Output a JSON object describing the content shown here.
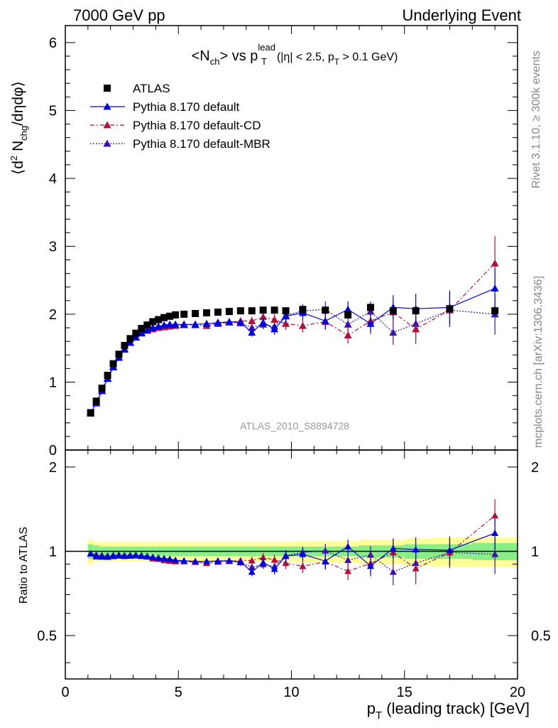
{
  "header": {
    "left": "7000 GeV pp",
    "right": "Underlying Event"
  },
  "side_labels": {
    "rivet": "Rivet 3.1.10, ≥ 300k events",
    "mcplots": "mcplots.cern.ch [arXiv:1306.3436]"
  },
  "watermark": "ATLAS_2010_S8894728",
  "title": {
    "main": "<N",
    "main_sub": "ch",
    "vs": "> vs p",
    "vs_sup": "lead",
    "vs_sub": "T",
    "cut1": "(|η| < 2.5, p",
    "cut_sub": "T",
    "cut2": " > 0.1 GeV)"
  },
  "legend": [
    {
      "label": "ATLAS",
      "color": "#000000",
      "marker": "square",
      "line": "none"
    },
    {
      "label": "Pythia 8.170 default",
      "color": "#0000dd",
      "marker": "triangle",
      "line": "solid"
    },
    {
      "label": "Pythia 8.170 default-CD",
      "color": "#b0103e",
      "marker": "triangle",
      "line": "dashdot"
    },
    {
      "label": "Pythia 8.170 default-MBR",
      "color": "#3a10b0",
      "marker": "triangle",
      "line": "dotted"
    }
  ],
  "ylabel_main": {
    "a": "⟨d",
    "a_sup": "2",
    "b": " N",
    "b_sub": "chg",
    "c": "/dηdφ⟩"
  },
  "ylabel_ratio": "Ratio to ATLAS",
  "xlabel": {
    "a": "p",
    "a_sub": "T",
    "b": " (leading track) [GeV]"
  },
  "chart_data": {
    "type": "scatter",
    "x": [
      1.12,
      1.37,
      1.62,
      1.87,
      2.12,
      2.37,
      2.62,
      2.87,
      3.12,
      3.37,
      3.62,
      3.87,
      4.12,
      4.37,
      4.62,
      4.87,
      5.25,
      5.75,
      6.25,
      6.75,
      7.25,
      7.75,
      8.25,
      8.75,
      9.25,
      9.75,
      10.5,
      11.5,
      12.5,
      13.5,
      14.5,
      15.5,
      17.0,
      19.0
    ],
    "xlim": [
      0,
      20
    ],
    "xticks": [
      "0",
      "5",
      "10",
      "15",
      "20"
    ],
    "main": {
      "ylim": [
        0,
        6.25
      ],
      "yticks": [
        "0",
        "1",
        "2",
        "3",
        "4",
        "5",
        "6"
      ]
    },
    "ratio": {
      "ylim": [
        0.35,
        2.3
      ],
      "scale": "log",
      "yticks": [
        "0.5",
        "1",
        "2"
      ],
      "band_inner": [
        0.06,
        0.05,
        0.04,
        0.04,
        0.04,
        0.04,
        0.04,
        0.04,
        0.04,
        0.04,
        0.04,
        0.04,
        0.04,
        0.04,
        0.04,
        0.04,
        0.04,
        0.04,
        0.04,
        0.04,
        0.04,
        0.04,
        0.04,
        0.04,
        0.04,
        0.04,
        0.04,
        0.04,
        0.04,
        0.05,
        0.05,
        0.06,
        0.06,
        0.07
      ],
      "band_outer": [
        0.1,
        0.08,
        0.08,
        0.08,
        0.08,
        0.08,
        0.08,
        0.08,
        0.08,
        0.08,
        0.08,
        0.08,
        0.08,
        0.08,
        0.08,
        0.08,
        0.08,
        0.08,
        0.08,
        0.08,
        0.08,
        0.08,
        0.08,
        0.08,
        0.08,
        0.08,
        0.09,
        0.09,
        0.09,
        0.1,
        0.1,
        0.11,
        0.12,
        0.12
      ]
    },
    "series": [
      {
        "name": "ATLAS",
        "values": [
          0.55,
          0.72,
          0.91,
          1.1,
          1.27,
          1.41,
          1.54,
          1.64,
          1.72,
          1.79,
          1.84,
          1.89,
          1.92,
          1.95,
          1.97,
          1.99,
          2.0,
          2.01,
          2.02,
          2.03,
          2.04,
          2.05,
          2.05,
          2.06,
          2.06,
          2.05,
          2.07,
          2.06,
          1.99,
          2.1,
          2.05,
          2.05,
          2.08,
          2.05
        ],
        "errors": [
          0.01,
          0.01,
          0.01,
          0.01,
          0.01,
          0.01,
          0.01,
          0.01,
          0.01,
          0.01,
          0.01,
          0.01,
          0.01,
          0.01,
          0.01,
          0.01,
          0.01,
          0.01,
          0.01,
          0.01,
          0.01,
          0.01,
          0.01,
          0.01,
          0.01,
          0.01,
          0.02,
          0.02,
          0.03,
          0.03,
          0.04,
          0.05,
          0.06,
          0.07
        ]
      },
      {
        "name": "Pythia 8.170 default",
        "values": [
          0.54,
          0.69,
          0.87,
          1.05,
          1.22,
          1.36,
          1.48,
          1.58,
          1.66,
          1.72,
          1.76,
          1.8,
          1.82,
          1.84,
          1.85,
          1.85,
          1.85,
          1.85,
          1.86,
          1.87,
          1.89,
          1.88,
          1.73,
          1.88,
          1.78,
          1.97,
          2.02,
          1.9,
          2.07,
          1.86,
          2.1,
          2.08,
          2.1,
          2.38
        ],
        "errors": [
          0.01,
          0.01,
          0.01,
          0.01,
          0.01,
          0.01,
          0.01,
          0.01,
          0.01,
          0.02,
          0.02,
          0.02,
          0.02,
          0.02,
          0.02,
          0.02,
          0.02,
          0.03,
          0.03,
          0.04,
          0.04,
          0.05,
          0.06,
          0.07,
          0.08,
          0.09,
          0.1,
          0.12,
          0.12,
          0.15,
          0.18,
          0.22,
          0.25,
          0.3
        ]
      },
      {
        "name": "Pythia 8.170 default-CD",
        "values": [
          0.54,
          0.69,
          0.87,
          1.05,
          1.22,
          1.36,
          1.48,
          1.58,
          1.66,
          1.72,
          1.76,
          1.78,
          1.8,
          1.81,
          1.82,
          1.83,
          1.84,
          1.84,
          1.83,
          1.86,
          1.88,
          1.9,
          1.9,
          1.96,
          1.92,
          1.86,
          1.83,
          1.89,
          1.69,
          1.9,
          2.03,
          1.78,
          2.06,
          2.75
        ],
        "errors": [
          0.01,
          0.01,
          0.01,
          0.01,
          0.01,
          0.01,
          0.01,
          0.01,
          0.01,
          0.02,
          0.02,
          0.02,
          0.02,
          0.02,
          0.02,
          0.02,
          0.02,
          0.03,
          0.03,
          0.04,
          0.04,
          0.05,
          0.06,
          0.07,
          0.08,
          0.09,
          0.1,
          0.12,
          0.12,
          0.15,
          0.18,
          0.22,
          0.25,
          0.4
        ]
      },
      {
        "name": "Pythia 8.170 default-MBR",
        "values": [
          0.54,
          0.7,
          0.88,
          1.06,
          1.23,
          1.37,
          1.49,
          1.59,
          1.67,
          1.73,
          1.77,
          1.8,
          1.82,
          1.83,
          1.84,
          1.84,
          1.85,
          1.85,
          1.86,
          1.88,
          1.88,
          1.87,
          1.8,
          1.85,
          1.82,
          1.98,
          2.05,
          2.07,
          1.85,
          2.04,
          1.73,
          1.86,
          2.06,
          2.0
        ],
        "errors": [
          0.01,
          0.01,
          0.01,
          0.01,
          0.01,
          0.01,
          0.01,
          0.01,
          0.01,
          0.02,
          0.02,
          0.02,
          0.02,
          0.02,
          0.02,
          0.02,
          0.02,
          0.03,
          0.03,
          0.04,
          0.04,
          0.05,
          0.06,
          0.07,
          0.08,
          0.09,
          0.1,
          0.12,
          0.12,
          0.15,
          0.18,
          0.22,
          0.25,
          0.3
        ]
      }
    ]
  },
  "colors": {
    "data": "#000000",
    "default": "#0000dd",
    "cd": "#b0103e",
    "mbr": "#3a10b0",
    "band_inner": "#88ee88",
    "band_outer": "#ffff99",
    "watermark": "#999999",
    "side_labels": "#888888"
  }
}
